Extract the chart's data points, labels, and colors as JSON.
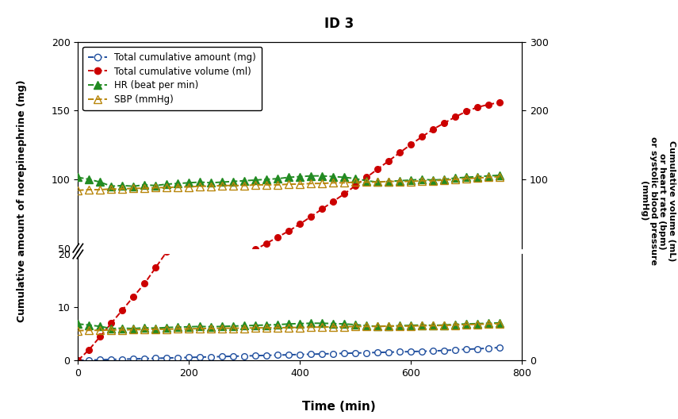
{
  "title": "ID 3",
  "xlabel": "Time (min)",
  "ylabel_left": "Cumulative amount of norepinephrine (mg)",
  "ylabel_right": "Cumulative volume (mL)\nor heart rate (bpm)\nor systolic blood pressure\n(mmHg)",
  "time": [
    0,
    20,
    40,
    60,
    80,
    100,
    120,
    140,
    160,
    180,
    200,
    220,
    240,
    260,
    280,
    300,
    320,
    340,
    360,
    380,
    400,
    420,
    440,
    460,
    480,
    500,
    520,
    540,
    560,
    580,
    600,
    620,
    640,
    660,
    680,
    700,
    720,
    740,
    760
  ],
  "cumulative_amount_mg": [
    0.0,
    0.06,
    0.11,
    0.17,
    0.22,
    0.28,
    0.33,
    0.39,
    0.44,
    0.5,
    0.55,
    0.61,
    0.66,
    0.72,
    0.77,
    0.83,
    0.88,
    0.94,
    0.99,
    1.05,
    1.1,
    1.16,
    1.21,
    1.27,
    1.32,
    1.38,
    1.43,
    1.49,
    1.54,
    1.6,
    1.65,
    1.71,
    1.76,
    1.87,
    1.98,
    2.09,
    2.18,
    2.3,
    2.42
  ],
  "cumulative_volume_ml": [
    0,
    2.0,
    4.5,
    7.0,
    9.5,
    12.0,
    14.5,
    17.5,
    20.5,
    23.5,
    26.5,
    30.0,
    33.5,
    37.0,
    41.0,
    45.0,
    49.0,
    53.5,
    58.0,
    62.5,
    67.5,
    73.0,
    78.5,
    84.0,
    89.5,
    95.5,
    101.5,
    107.5,
    113.5,
    119.5,
    125.5,
    131.0,
    136.5,
    141.0,
    145.5,
    149.5,
    152.5,
    154.5,
    156.0
  ],
  "hr_bpm": [
    103,
    100,
    96,
    90,
    91,
    90,
    92,
    91,
    93,
    94,
    95,
    96,
    95,
    96,
    97,
    98,
    99,
    100,
    101,
    103,
    104,
    105,
    105,
    104,
    103,
    101,
    98,
    96,
    97,
    98,
    99,
    100,
    99,
    100,
    102,
    103,
    104,
    105,
    106
  ],
  "sbp_mmhg": [
    84,
    85,
    85,
    86,
    86,
    87,
    87,
    88,
    88,
    89,
    89,
    90,
    90,
    91,
    91,
    91,
    92,
    92,
    92,
    93,
    93,
    94,
    94,
    95,
    95,
    96,
    96,
    96,
    97,
    97,
    97,
    98,
    98,
    99,
    100,
    101,
    102,
    103,
    104
  ],
  "color_amount": "#1F4E9E",
  "color_volume": "#CC0000",
  "color_hr": "#228B22",
  "color_sbp": "#B8860B",
  "xlim": [
    0,
    800
  ],
  "xticks": [
    0,
    200,
    400,
    600,
    800
  ],
  "ylim_right": [
    0,
    300
  ],
  "yticks_right": [
    0,
    100,
    200,
    300
  ],
  "height_ratio_top": 3.5,
  "height_ratio_bot": 1.8
}
